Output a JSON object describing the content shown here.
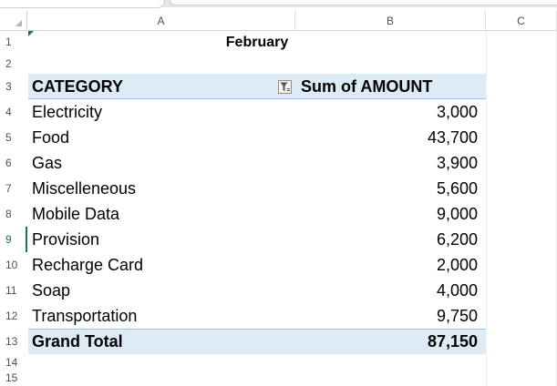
{
  "sheet": {
    "columns": [
      "A",
      "B",
      "C"
    ],
    "rows": [
      "1",
      "2",
      "3",
      "4",
      "5",
      "6",
      "7",
      "8",
      "9",
      "10",
      "11",
      "12",
      "13",
      "14",
      "15"
    ],
    "active_row": "9",
    "title": "February",
    "pivot": {
      "header_category": "CATEGORY",
      "header_amount": "Sum of AMOUNT",
      "items": [
        {
          "category": "Electricity",
          "amount": "3,000"
        },
        {
          "category": "Food",
          "amount": "43,700"
        },
        {
          "category": "Gas",
          "amount": "3,900"
        },
        {
          "category": "Miscelleneous",
          "amount": "5,600"
        },
        {
          "category": "Mobile Data",
          "amount": "9,000"
        },
        {
          "category": "Provision",
          "amount": "6,200"
        },
        {
          "category": "Recharge Card",
          "amount": "2,000"
        },
        {
          "category": "Soap",
          "amount": "4,000"
        },
        {
          "category": "Transportation",
          "amount": "9,750"
        }
      ],
      "total_label": "Grand Total",
      "total_amount": "87,150"
    }
  },
  "colors": {
    "header_band": "#ddebf7",
    "band_border": "#9bc2e6",
    "active_accent": "#217346"
  },
  "icons": {
    "filter": "filter-icon",
    "select_all": "select-all-triangle"
  }
}
